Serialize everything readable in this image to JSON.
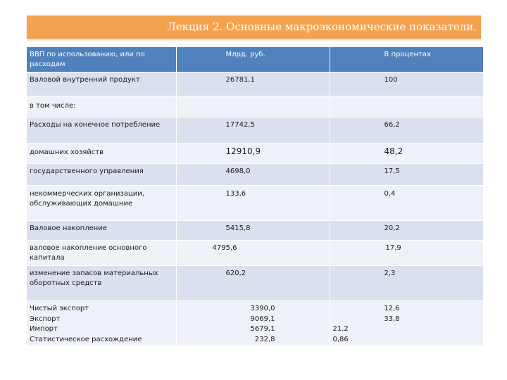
{
  "title": "Лекция 2. Основные макроэкономические показатели.",
  "table": {
    "header": [
      "ВВП по использованию, или по расходам",
      "Млрд. руб.",
      "В процентах"
    ],
    "rows": [
      {
        "label": "Валовой внутренний продукт",
        "value": "26781,1",
        "percent": "100"
      },
      {
        "label": "в том числе:",
        "value": "",
        "percent": ""
      },
      {
        "label": "Расходы  на  конечное  потребление",
        "value": "17742,5",
        "percent": "66,2"
      },
      {
        "label": "домашних хозяйств",
        "value": "12910,9",
        "percent": "48,2"
      },
      {
        "label": "государственного управления",
        "value": "4698,0",
        "percent": "17,5"
      },
      {
        "label": "некоммерческих организации, обслуживающих домашние",
        "value": "133,6",
        "percent": "0,4"
      },
      {
        "label": "Валовое   накопление",
        "value": "5415,8",
        "percent": "20,2"
      },
      {
        "label": "валовое накопление основного капитала",
        "value": "4795,6",
        "percent": "17,9"
      },
      {
        "label": "изменение запасов материальных оборотных средств",
        "value": "620,2",
        "percent": "2,3"
      }
    ],
    "last_row": {
      "labels": [
        "Чистый экспорт",
        "Экспорт",
        "Импорт",
        "Статистическое расхождение"
      ],
      "values": [
        "3390,0",
        "9069,1",
        "5679,1",
        "232,8"
      ],
      "percents_top": [
        "12,6",
        "33,8"
      ],
      "percents_bottom": [
        "21,2",
        "0,86"
      ]
    }
  }
}
